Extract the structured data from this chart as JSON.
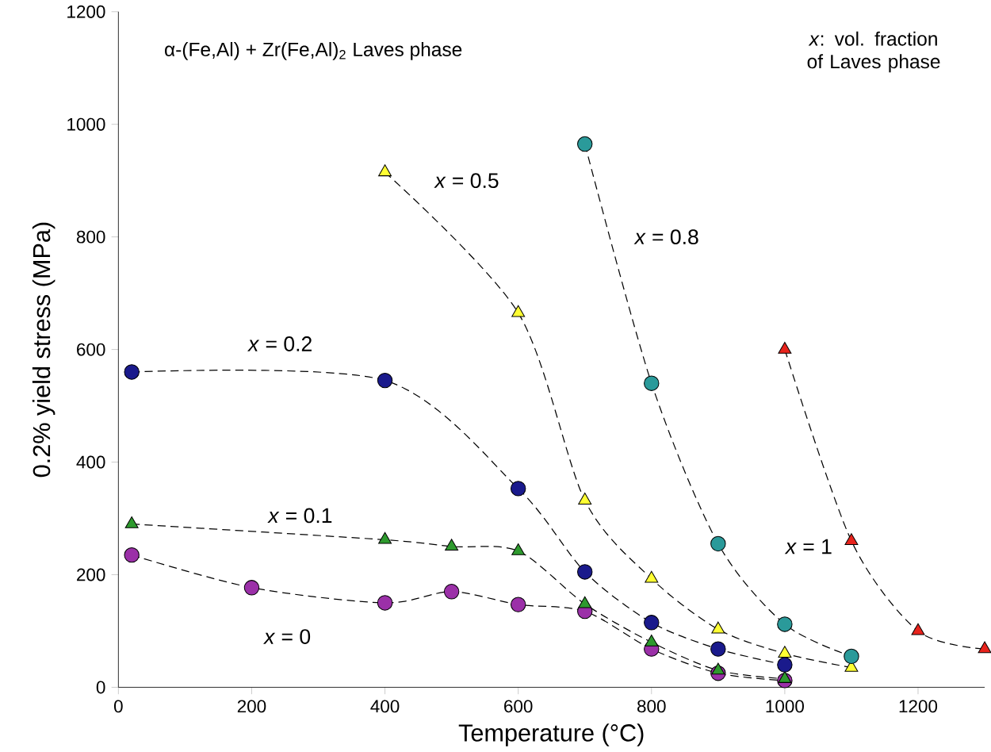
{
  "chart_data": {
    "type": "line",
    "xlabel": "Temperature (°C)",
    "ylabel": "0.2% yield stress (MPa)",
    "xlim": [
      0,
      1300
    ],
    "ylim": [
      0,
      1200
    ],
    "xticks": [
      0,
      200,
      400,
      600,
      800,
      1000,
      1200
    ],
    "yticks": [
      0,
      200,
      400,
      600,
      800,
      1000,
      1200
    ],
    "grid": false,
    "line_style": "dashed",
    "annotations": [
      "α-(Fe,Al) + Zr(Fe,Al)$_{2}$ Laves phase",
      "*x*: vol. fraction  of Laves phase"
    ],
    "series": [
      {
        "name": "*x* = 0",
        "color": "#9b30a8",
        "marker": "circle",
        "x": [
          20,
          200,
          400,
          500,
          600,
          700,
          800,
          900,
          1000
        ],
        "values": [
          235,
          177,
          150,
          170,
          147,
          135,
          68,
          25,
          12
        ]
      },
      {
        "name": "*x* = 0.1",
        "color": "#2e9a2e",
        "marker": "triangle",
        "x": [
          20,
          400,
          500,
          600,
          700,
          800,
          900,
          1000
        ],
        "values": [
          290,
          262,
          250,
          242,
          148,
          80,
          30,
          15
        ]
      },
      {
        "name": "*x* = 0.2",
        "color": "#1a1a8c",
        "marker": "circle",
        "x": [
          20,
          400,
          600,
          700,
          800,
          900,
          1000
        ],
        "values": [
          560,
          545,
          353,
          205,
          115,
          68,
          40
        ]
      },
      {
        "name": "*x* = 0.5",
        "color": "#ffff33",
        "marker": "triangle",
        "x": [
          400,
          600,
          700,
          800,
          900,
          1000,
          1100
        ],
        "values": [
          915,
          665,
          332,
          193,
          103,
          60,
          35
        ]
      },
      {
        "name": "*x* = 0.8",
        "color": "#2a9a9a",
        "marker": "circle",
        "x": [
          700,
          800,
          900,
          1000,
          1100
        ],
        "values": [
          965,
          540,
          255,
          112,
          55
        ]
      },
      {
        "name": "*x* = 1",
        "color": "#e8231c",
        "marker": "triangle",
        "x": [
          1000,
          1100,
          1200,
          1300
        ],
        "values": [
          600,
          260,
          100,
          68
        ]
      }
    ]
  }
}
